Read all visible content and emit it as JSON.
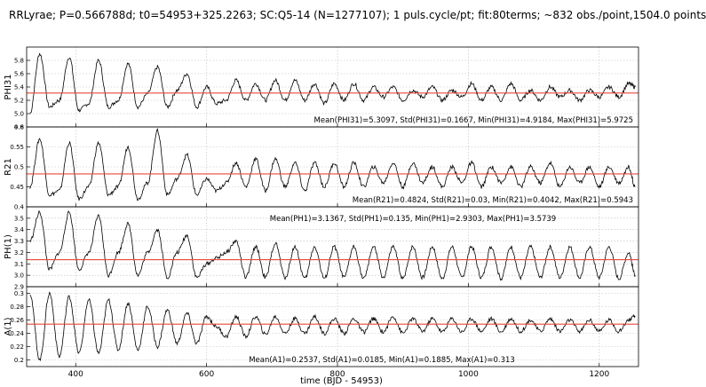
{
  "title": "RRLyrae; P=0.566788d; t0=54953+325.2263; SC:Q5-14 (N=1277107); 1 puls.cycle/pt; fit:80terms; ~832 obs./point,1504.0 points",
  "chart_data": [
    {
      "type": "line",
      "ylabel": "PHI31",
      "xlim": [
        325,
        1260
      ],
      "ylim": [
        4.8,
        6.0
      ],
      "yticks": [
        4.8,
        5.0,
        5.2,
        5.4,
        5.6,
        5.8
      ],
      "show_xtick_labels": false,
      "mean": 5.3097,
      "std": 0.1667,
      "min": 4.9184,
      "max": 5.9725,
      "annotation": "Mean(PHI31)=5.3097,  Std(PHI31)=0.1667,  Min(PHI31)=4.9184,  Max(PHI31)=5.9725",
      "annotation_place": "bottom-right",
      "series": [
        {
          "x": [
            330,
            345,
            360,
            375,
            390,
            405,
            420,
            435,
            450,
            465,
            480,
            495,
            510,
            525,
            540,
            555,
            570,
            585,
            600,
            615,
            630,
            645,
            660,
            675,
            690,
            705,
            720,
            735,
            750,
            765,
            780,
            795,
            810,
            825,
            840,
            855,
            870,
            885,
            900,
            915,
            930,
            945,
            960,
            975,
            990,
            1005,
            1020,
            1035,
            1050,
            1065,
            1080,
            1095,
            1110,
            1125,
            1140,
            1155,
            1170,
            1185,
            1200,
            1215,
            1230,
            1245,
            1255
          ],
          "y": [
            5.0,
            5.9,
            5.1,
            5.2,
            5.85,
            5.05,
            5.15,
            5.8,
            5.1,
            5.2,
            5.75,
            5.1,
            5.3,
            5.7,
            5.1,
            5.35,
            5.6,
            5.1,
            5.4,
            5.15,
            5.2,
            5.5,
            5.2,
            5.45,
            5.2,
            5.5,
            5.2,
            5.5,
            5.2,
            5.45,
            5.15,
            5.45,
            5.2,
            5.45,
            5.2,
            5.4,
            5.25,
            5.4,
            5.2,
            5.35,
            5.25,
            5.4,
            5.2,
            5.35,
            5.25,
            5.45,
            5.2,
            5.4,
            5.2,
            5.45,
            5.2,
            5.35,
            5.2,
            5.4,
            5.25,
            5.35,
            5.2,
            5.35,
            5.25,
            5.4,
            5.25,
            5.45,
            5.4
          ]
        }
      ]
    },
    {
      "type": "line",
      "ylabel": "R21",
      "xlim": [
        325,
        1260
      ],
      "ylim": [
        0.4,
        0.6
      ],
      "yticks": [
        0.4,
        0.45,
        0.5,
        0.55,
        0.6
      ],
      "show_xtick_labels": false,
      "mean": 0.4824,
      "std": 0.03,
      "min": 0.4042,
      "max": 0.5943,
      "annotation": "Mean(R21)=0.4824,  Std(R21)=0.03,  Min(R21)=0.4042,  Max(R21)=0.5943",
      "annotation_place": "bottom-right",
      "series": [
        {
          "x": [
            330,
            345,
            360,
            375,
            390,
            405,
            420,
            435,
            450,
            465,
            480,
            495,
            510,
            525,
            540,
            555,
            570,
            585,
            600,
            615,
            630,
            645,
            660,
            675,
            690,
            705,
            720,
            735,
            750,
            765,
            780,
            795,
            810,
            825,
            840,
            855,
            870,
            885,
            900,
            915,
            930,
            945,
            960,
            975,
            990,
            1005,
            1020,
            1035,
            1050,
            1065,
            1080,
            1095,
            1110,
            1125,
            1140,
            1155,
            1170,
            1185,
            1200,
            1215,
            1230,
            1245,
            1255
          ],
          "y": [
            0.45,
            0.57,
            0.43,
            0.44,
            0.56,
            0.42,
            0.45,
            0.56,
            0.43,
            0.45,
            0.55,
            0.42,
            0.46,
            0.59,
            0.43,
            0.47,
            0.53,
            0.43,
            0.47,
            0.44,
            0.46,
            0.51,
            0.45,
            0.52,
            0.44,
            0.52,
            0.45,
            0.51,
            0.44,
            0.51,
            0.45,
            0.51,
            0.45,
            0.51,
            0.45,
            0.5,
            0.46,
            0.51,
            0.45,
            0.51,
            0.46,
            0.5,
            0.45,
            0.5,
            0.46,
            0.51,
            0.45,
            0.5,
            0.46,
            0.5,
            0.45,
            0.5,
            0.46,
            0.51,
            0.45,
            0.5,
            0.46,
            0.5,
            0.45,
            0.5,
            0.46,
            0.5,
            0.45
          ]
        }
      ]
    },
    {
      "type": "line",
      "ylabel": "PH(1)",
      "xlim": [
        325,
        1260
      ],
      "ylim": [
        2.9,
        3.6
      ],
      "yticks": [
        2.9,
        3.0,
        3.1,
        3.2,
        3.3,
        3.4,
        3.5
      ],
      "show_xtick_labels": false,
      "mean": 3.1367,
      "std": 0.135,
      "min": 2.9303,
      "max": 3.5739,
      "annotation": "Mean(PH1)=3.1367,  Std(PH1)=0.135,  Min(PH1)=2.9303,  Max(PH1)=3.5739",
      "annotation_place": "top-center",
      "series": [
        {
          "x": [
            330,
            345,
            360,
            375,
            390,
            405,
            420,
            435,
            450,
            465,
            480,
            495,
            510,
            525,
            540,
            555,
            570,
            585,
            600,
            615,
            630,
            645,
            660,
            675,
            690,
            705,
            720,
            735,
            750,
            765,
            780,
            795,
            810,
            825,
            840,
            855,
            870,
            885,
            900,
            915,
            930,
            945,
            960,
            975,
            990,
            1005,
            1020,
            1035,
            1050,
            1065,
            1080,
            1095,
            1110,
            1125,
            1140,
            1155,
            1170,
            1185,
            1200,
            1215,
            1230,
            1245,
            1255
          ],
          "y": [
            3.3,
            3.55,
            3.05,
            3.2,
            3.55,
            3.05,
            3.2,
            3.52,
            3.0,
            3.2,
            3.45,
            3.0,
            3.2,
            3.4,
            2.98,
            3.2,
            3.35,
            2.98,
            3.1,
            3.15,
            3.2,
            3.3,
            2.98,
            3.25,
            2.98,
            3.28,
            2.98,
            3.25,
            2.97,
            3.25,
            2.97,
            3.25,
            2.98,
            3.25,
            2.97,
            3.25,
            2.98,
            3.25,
            2.97,
            3.25,
            2.98,
            3.25,
            2.97,
            3.25,
            2.98,
            3.25,
            2.98,
            3.25,
            2.97,
            3.25,
            2.98,
            3.25,
            2.98,
            3.25,
            2.98,
            3.25,
            2.98,
            3.25,
            2.98,
            3.25,
            2.97,
            3.2,
            3.0
          ]
        }
      ]
    },
    {
      "type": "line",
      "ylabel": "A(1)",
      "xlabel": "time (BJD - 54953)",
      "xlim": [
        325,
        1260
      ],
      "ylim": [
        0.19,
        0.31
      ],
      "yticks": [
        0.2,
        0.22,
        0.24,
        0.26,
        0.28,
        0.3
      ],
      "xticks": [
        400,
        600,
        800,
        1000,
        1200
      ],
      "show_xtick_labels": true,
      "mean": 0.2537,
      "std": 0.0185,
      "min": 0.1885,
      "max": 0.313,
      "annotation": "Mean(A1)=0.2537,  Std(A1)=0.0185,  Min(A1)=0.1885,  Max(A1)=0.313",
      "annotation_place": "bottom-center",
      "series": [
        {
          "x": [
            330,
            345,
            360,
            375,
            390,
            405,
            420,
            435,
            450,
            465,
            480,
            495,
            510,
            525,
            540,
            555,
            570,
            585,
            600,
            615,
            630,
            645,
            660,
            675,
            690,
            705,
            720,
            735,
            750,
            765,
            780,
            795,
            810,
            825,
            840,
            855,
            870,
            885,
            900,
            915,
            930,
            945,
            960,
            975,
            990,
            1005,
            1020,
            1035,
            1050,
            1065,
            1080,
            1095,
            1110,
            1125,
            1140,
            1155,
            1170,
            1185,
            1200,
            1215,
            1230,
            1245,
            1255
          ],
          "y": [
            0.3,
            0.2,
            0.3,
            0.205,
            0.295,
            0.21,
            0.29,
            0.21,
            0.29,
            0.215,
            0.285,
            0.215,
            0.28,
            0.22,
            0.275,
            0.225,
            0.27,
            0.225,
            0.265,
            0.25,
            0.235,
            0.265,
            0.235,
            0.265,
            0.238,
            0.265,
            0.24,
            0.262,
            0.24,
            0.265,
            0.24,
            0.262,
            0.24,
            0.262,
            0.242,
            0.262,
            0.242,
            0.265,
            0.24,
            0.262,
            0.243,
            0.262,
            0.242,
            0.262,
            0.242,
            0.262,
            0.243,
            0.262,
            0.242,
            0.262,
            0.243,
            0.26,
            0.243,
            0.262,
            0.243,
            0.26,
            0.243,
            0.26,
            0.243,
            0.26,
            0.243,
            0.26,
            0.265
          ]
        }
      ]
    }
  ]
}
